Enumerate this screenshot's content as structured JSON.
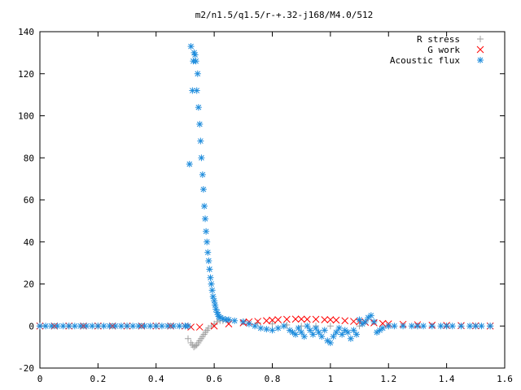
{
  "chart_data": {
    "type": "scatter",
    "title": "m2/n1.5/q1.5/r-+.32-j168/M4.0/512",
    "xlabel": "",
    "ylabel": "",
    "xlim": [
      0,
      1.6
    ],
    "ylim": [
      -20,
      140
    ],
    "xticks": [
      0,
      0.2,
      0.4,
      0.6,
      0.8,
      1,
      1.2,
      1.4,
      1.6
    ],
    "xtick_labels": [
      "0",
      "0.2",
      "0.4",
      "0.6",
      "0.8",
      "1",
      "1.2",
      "1.4",
      "1.6"
    ],
    "yticks": [
      -20,
      0,
      20,
      40,
      60,
      80,
      100,
      120,
      140
    ],
    "ytick_labels": [
      "-20",
      "0",
      "20",
      "40",
      "60",
      "80",
      "100",
      "120",
      "140"
    ],
    "grid": false,
    "legend_position": "top-right",
    "series": [
      {
        "name": "R stress",
        "marker": "plus",
        "color": "#a0a0a0",
        "points": [
          [
            0.0,
            0
          ],
          [
            0.05,
            0
          ],
          [
            0.1,
            0
          ],
          [
            0.15,
            0
          ],
          [
            0.2,
            0
          ],
          [
            0.25,
            0
          ],
          [
            0.3,
            0
          ],
          [
            0.35,
            0
          ],
          [
            0.4,
            0
          ],
          [
            0.45,
            0
          ],
          [
            0.5,
            0
          ],
          [
            0.51,
            -6
          ],
          [
            0.52,
            -8
          ],
          [
            0.525,
            -9
          ],
          [
            0.53,
            -10
          ],
          [
            0.535,
            -9.5
          ],
          [
            0.54,
            -9
          ],
          [
            0.545,
            -8
          ],
          [
            0.55,
            -7
          ],
          [
            0.555,
            -6
          ],
          [
            0.56,
            -5
          ],
          [
            0.565,
            -4
          ],
          [
            0.57,
            -3
          ],
          [
            0.575,
            -2
          ],
          [
            0.58,
            -1
          ],
          [
            0.59,
            0
          ],
          [
            0.6,
            1
          ],
          [
            0.61,
            2
          ],
          [
            0.62,
            2.5
          ],
          [
            0.63,
            2.5
          ],
          [
            0.65,
            2.5
          ],
          [
            0.7,
            2
          ],
          [
            0.75,
            1.5
          ],
          [
            0.8,
            1
          ],
          [
            0.85,
            0.5
          ],
          [
            0.9,
            0
          ],
          [
            0.95,
            0
          ],
          [
            1.0,
            0
          ],
          [
            1.1,
            0
          ],
          [
            1.2,
            0
          ],
          [
            1.3,
            0
          ],
          [
            1.4,
            0
          ],
          [
            1.5,
            0
          ],
          [
            1.55,
            0
          ]
        ]
      },
      {
        "name": "G work",
        "marker": "cross",
        "color": "#ff0000",
        "points": [
          [
            0.0,
            0
          ],
          [
            0.05,
            0
          ],
          [
            0.1,
            0
          ],
          [
            0.15,
            0
          ],
          [
            0.2,
            0
          ],
          [
            0.25,
            0
          ],
          [
            0.3,
            0
          ],
          [
            0.35,
            0
          ],
          [
            0.4,
            0
          ],
          [
            0.45,
            0
          ],
          [
            0.5,
            0
          ],
          [
            0.52,
            -0.5
          ],
          [
            0.55,
            -0.5
          ],
          [
            0.6,
            0
          ],
          [
            0.65,
            1
          ],
          [
            0.7,
            1.5
          ],
          [
            0.72,
            2
          ],
          [
            0.75,
            2.2
          ],
          [
            0.78,
            2.5
          ],
          [
            0.8,
            2.8
          ],
          [
            0.82,
            3
          ],
          [
            0.85,
            3.2
          ],
          [
            0.88,
            3.3
          ],
          [
            0.9,
            3.3
          ],
          [
            0.92,
            3.2
          ],
          [
            0.95,
            3.2
          ],
          [
            0.98,
            3
          ],
          [
            1.0,
            3
          ],
          [
            1.02,
            2.8
          ],
          [
            1.05,
            2.5
          ],
          [
            1.08,
            2.2
          ],
          [
            1.1,
            2
          ],
          [
            1.12,
            1.8
          ],
          [
            1.15,
            1.5
          ],
          [
            1.18,
            1.2
          ],
          [
            1.2,
            1
          ],
          [
            1.25,
            0.8
          ],
          [
            1.3,
            0.6
          ],
          [
            1.35,
            0.4
          ],
          [
            1.4,
            0.3
          ],
          [
            1.45,
            0.2
          ],
          [
            1.5,
            0.1
          ],
          [
            1.55,
            0
          ]
        ]
      },
      {
        "name": "Acoustic flux",
        "marker": "star",
        "color": "#1e8cdc",
        "points": [
          [
            0.0,
            0
          ],
          [
            0.02,
            0
          ],
          [
            0.04,
            0
          ],
          [
            0.06,
            0
          ],
          [
            0.08,
            0
          ],
          [
            0.1,
            0
          ],
          [
            0.12,
            0
          ],
          [
            0.14,
            0
          ],
          [
            0.16,
            0
          ],
          [
            0.18,
            0
          ],
          [
            0.2,
            0
          ],
          [
            0.22,
            0
          ],
          [
            0.24,
            0
          ],
          [
            0.26,
            0
          ],
          [
            0.28,
            0
          ],
          [
            0.3,
            0
          ],
          [
            0.32,
            0
          ],
          [
            0.34,
            0
          ],
          [
            0.36,
            0
          ],
          [
            0.38,
            0
          ],
          [
            0.4,
            0
          ],
          [
            0.42,
            0
          ],
          [
            0.44,
            0
          ],
          [
            0.46,
            0
          ],
          [
            0.48,
            0
          ],
          [
            0.5,
            0
          ],
          [
            0.51,
            0
          ],
          [
            0.515,
            77
          ],
          [
            0.52,
            133
          ],
          [
            0.525,
            112
          ],
          [
            0.528,
            126
          ],
          [
            0.531,
            130
          ],
          [
            0.534,
            129
          ],
          [
            0.537,
            126
          ],
          [
            0.54,
            112
          ],
          [
            0.543,
            120
          ],
          [
            0.546,
            104
          ],
          [
            0.55,
            96
          ],
          [
            0.553,
            88
          ],
          [
            0.556,
            80
          ],
          [
            0.56,
            72
          ],
          [
            0.563,
            65
          ],
          [
            0.566,
            57
          ],
          [
            0.569,
            51
          ],
          [
            0.572,
            45
          ],
          [
            0.575,
            40
          ],
          [
            0.578,
            35
          ],
          [
            0.581,
            31
          ],
          [
            0.584,
            27
          ],
          [
            0.587,
            23
          ],
          [
            0.59,
            20
          ],
          [
            0.593,
            17
          ],
          [
            0.596,
            14
          ],
          [
            0.6,
            12
          ],
          [
            0.603,
            10
          ],
          [
            0.606,
            8
          ],
          [
            0.61,
            6.5
          ],
          [
            0.613,
            5.5
          ],
          [
            0.616,
            4.5
          ],
          [
            0.62,
            4
          ],
          [
            0.63,
            3.5
          ],
          [
            0.64,
            3
          ],
          [
            0.65,
            3
          ],
          [
            0.67,
            2.5
          ],
          [
            0.7,
            2
          ],
          [
            0.72,
            1
          ],
          [
            0.74,
            0
          ],
          [
            0.76,
            -1
          ],
          [
            0.78,
            -1.5
          ],
          [
            0.8,
            -2
          ],
          [
            0.82,
            -1
          ],
          [
            0.84,
            0
          ],
          [
            0.86,
            -2
          ],
          [
            0.87,
            -3
          ],
          [
            0.88,
            -4
          ],
          [
            0.89,
            -1
          ],
          [
            0.9,
            -3
          ],
          [
            0.91,
            -5
          ],
          [
            0.92,
            0
          ],
          [
            0.93,
            -2
          ],
          [
            0.94,
            -4
          ],
          [
            0.95,
            -1
          ],
          [
            0.96,
            -3
          ],
          [
            0.97,
            -5
          ],
          [
            0.98,
            -2
          ],
          [
            0.99,
            -7
          ],
          [
            1.0,
            -8
          ],
          [
            1.01,
            -5
          ],
          [
            1.02,
            -3
          ],
          [
            1.03,
            -1
          ],
          [
            1.04,
            -4
          ],
          [
            1.05,
            -2
          ],
          [
            1.06,
            -3
          ],
          [
            1.07,
            -6
          ],
          [
            1.08,
            -2
          ],
          [
            1.09,
            -4
          ],
          [
            1.1,
            3
          ],
          [
            1.11,
            1
          ],
          [
            1.12,
            2
          ],
          [
            1.13,
            4
          ],
          [
            1.14,
            5
          ],
          [
            1.15,
            2
          ],
          [
            1.16,
            -3
          ],
          [
            1.17,
            -2
          ],
          [
            1.18,
            -1
          ],
          [
            1.2,
            0
          ],
          [
            1.22,
            0
          ],
          [
            1.25,
            0
          ],
          [
            1.28,
            0
          ],
          [
            1.3,
            0
          ],
          [
            1.32,
            0
          ],
          [
            1.35,
            0
          ],
          [
            1.38,
            0
          ],
          [
            1.4,
            0
          ],
          [
            1.42,
            0
          ],
          [
            1.45,
            0
          ],
          [
            1.48,
            0
          ],
          [
            1.5,
            0
          ],
          [
            1.52,
            0
          ],
          [
            1.55,
            0
          ]
        ]
      }
    ]
  }
}
